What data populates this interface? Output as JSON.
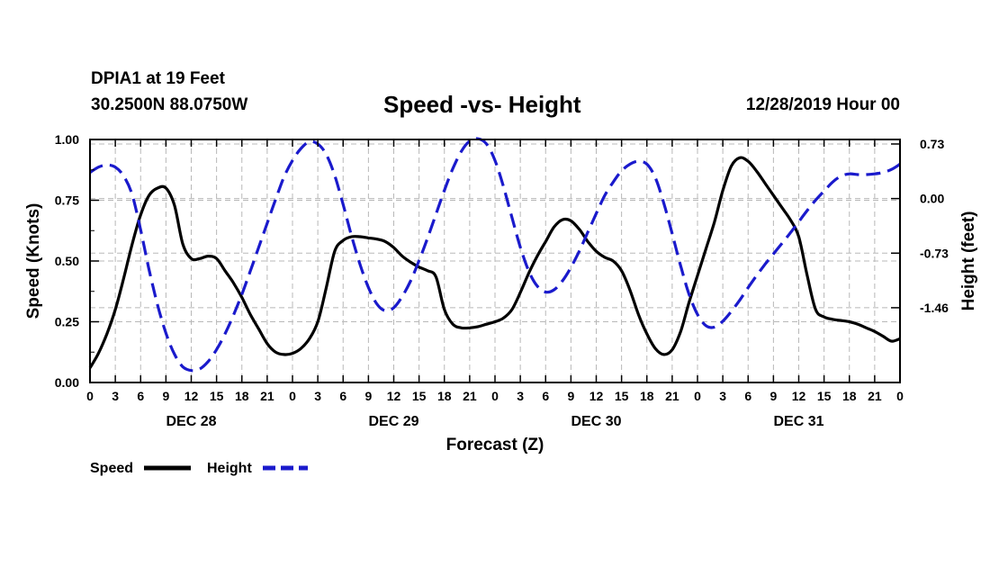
{
  "header": {
    "station": "DPIA1 at 19 Feet",
    "coords": "30.2500N 88.0750W",
    "date": "12/28/2019 Hour 00"
  },
  "chart_data": {
    "type": "line",
    "title": "Speed -vs- Height",
    "xlabel": "Forecast (Z)",
    "ylabel": "Speed (Knots)",
    "ylabel_right": "Height (feet)",
    "xlim": [
      0,
      96
    ],
    "ylim": [
      0,
      1.0
    ],
    "ylim_right": [
      -2.46,
      0.79
    ],
    "x_tick_labels": [
      "0",
      "3",
      "6",
      "9",
      "12",
      "15",
      "18",
      "21",
      "0",
      "3",
      "6",
      "9",
      "12",
      "15",
      "18",
      "21",
      "0",
      "3",
      "6",
      "9",
      "12",
      "15",
      "18",
      "21",
      "0",
      "3",
      "6",
      "9",
      "12",
      "15",
      "18",
      "21",
      "0"
    ],
    "day_labels": [
      "DEC 28",
      "DEC 29",
      "DEC 30",
      "DEC 31"
    ],
    "y_ticks": [
      "0.00",
      "0.25",
      "0.50",
      "0.75",
      "1.00"
    ],
    "y_ticks_values": [
      0,
      0.25,
      0.5,
      0.75,
      1.0
    ],
    "y_right_ticks": [
      "0.73",
      "0.00",
      "-0.73",
      "-1.46"
    ],
    "y_right_ticks_values": [
      0.73,
      0.0,
      -0.73,
      -1.46
    ],
    "grid": true,
    "legend": "bottom-left",
    "series": [
      {
        "name": "Speed",
        "color": "#000000",
        "axis": "left",
        "x": [
          0,
          1,
          2,
          3,
          4,
          5,
          6,
          7,
          8,
          9,
          10,
          11,
          12,
          13,
          14,
          15,
          16,
          17,
          18,
          19,
          20,
          21,
          22,
          23,
          24,
          25,
          26,
          27,
          28,
          29,
          30,
          31,
          32,
          33,
          34,
          35,
          36,
          37,
          38,
          39,
          40,
          41,
          42,
          43,
          44,
          45,
          46,
          47,
          48,
          49,
          50,
          51,
          52,
          53,
          54,
          55,
          56,
          57,
          58,
          59,
          60,
          61,
          62,
          63,
          64,
          65,
          66,
          67,
          68,
          69,
          70,
          71,
          72,
          73,
          74,
          75,
          76,
          77,
          78,
          79,
          80,
          81,
          82,
          83,
          84,
          85,
          86,
          87,
          88,
          89,
          90,
          91,
          92,
          93,
          94,
          95,
          96
        ],
        "values": [
          0.06,
          0.12,
          0.2,
          0.3,
          0.43,
          0.57,
          0.69,
          0.77,
          0.8,
          0.8,
          0.73,
          0.57,
          0.51,
          0.51,
          0.52,
          0.51,
          0.46,
          0.41,
          0.35,
          0.28,
          0.22,
          0.16,
          0.125,
          0.115,
          0.12,
          0.14,
          0.18,
          0.25,
          0.39,
          0.54,
          0.585,
          0.6,
          0.6,
          0.595,
          0.59,
          0.58,
          0.555,
          0.52,
          0.495,
          0.475,
          0.46,
          0.435,
          0.3,
          0.24,
          0.225,
          0.225,
          0.23,
          0.24,
          0.25,
          0.265,
          0.3,
          0.37,
          0.45,
          0.52,
          0.58,
          0.64,
          0.67,
          0.665,
          0.63,
          0.58,
          0.54,
          0.515,
          0.5,
          0.46,
          0.38,
          0.28,
          0.2,
          0.14,
          0.115,
          0.135,
          0.21,
          0.33,
          0.44,
          0.55,
          0.66,
          0.79,
          0.89,
          0.925,
          0.91,
          0.87,
          0.82,
          0.77,
          0.72,
          0.67,
          0.6,
          0.44,
          0.3,
          0.27,
          0.26,
          0.255,
          0.25,
          0.24,
          0.225,
          0.21,
          0.19,
          0.17,
          0.18
        ]
      },
      {
        "name": "Height",
        "color": "#1a1acc",
        "axis": "right",
        "x": [
          0,
          1,
          2,
          3,
          4,
          5,
          6,
          7,
          8,
          9,
          10,
          11,
          12,
          13,
          14,
          15,
          16,
          17,
          18,
          19,
          20,
          21,
          22,
          23,
          24,
          25,
          26,
          27,
          28,
          29,
          30,
          31,
          32,
          33,
          34,
          35,
          36,
          37,
          38,
          39,
          40,
          41,
          42,
          43,
          44,
          45,
          46,
          47,
          48,
          49,
          50,
          51,
          52,
          53,
          54,
          55,
          56,
          57,
          58,
          59,
          60,
          61,
          62,
          63,
          64,
          65,
          66,
          67,
          68,
          69,
          70,
          71,
          72,
          73,
          74,
          75,
          76,
          77,
          78,
          79,
          80,
          81,
          82,
          83,
          84,
          85,
          86,
          87,
          88,
          89,
          90,
          91,
          92,
          93,
          94,
          95,
          96
        ],
        "values": [
          0.35,
          0.42,
          0.45,
          0.42,
          0.3,
          0.05,
          -0.42,
          -0.95,
          -1.42,
          -1.8,
          -2.08,
          -2.25,
          -2.3,
          -2.28,
          -2.18,
          -2.02,
          -1.81,
          -1.56,
          -1.28,
          -0.97,
          -0.65,
          -0.33,
          -0.01,
          0.29,
          0.51,
          0.67,
          0.76,
          0.73,
          0.59,
          0.31,
          -0.08,
          -0.5,
          -0.88,
          -1.19,
          -1.41,
          -1.5,
          -1.46,
          -1.31,
          -1.1,
          -0.83,
          -0.53,
          -0.21,
          0.11,
          0.4,
          0.63,
          0.77,
          0.8,
          0.73,
          0.51,
          0.16,
          -0.25,
          -0.65,
          -0.97,
          -1.17,
          -1.25,
          -1.22,
          -1.1,
          -0.92,
          -0.7,
          -0.45,
          -0.2,
          0.04,
          0.22,
          0.37,
          0.46,
          0.5,
          0.46,
          0.28,
          -0.06,
          -0.47,
          -0.9,
          -1.28,
          -1.55,
          -1.7,
          -1.72,
          -1.64,
          -1.51,
          -1.36,
          -1.19,
          -1.03,
          -0.88,
          -0.74,
          -0.6,
          -0.46,
          -0.31,
          -0.16,
          -0.02,
          0.1,
          0.22,
          0.3,
          0.33,
          0.32,
          0.32,
          0.33,
          0.35,
          0.39,
          0.46
        ]
      }
    ]
  }
}
